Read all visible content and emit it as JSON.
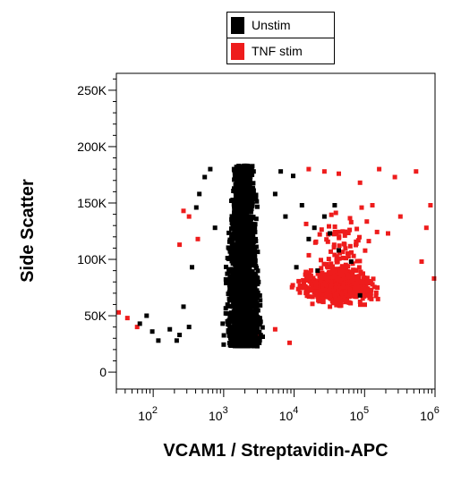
{
  "legend": [
    {
      "label": "Unstim",
      "color": "#000000"
    },
    {
      "label": "TNF stim",
      "color": "#ee1c1c"
    }
  ],
  "chart_data": {
    "type": "scatter",
    "title": "",
    "xlabel": "VCAM1 / Streptavidin-APC",
    "ylabel": "Side Scatter",
    "xscale": "log",
    "xlim": [
      30,
      1000000
    ],
    "ylim": [
      -15000,
      265000
    ],
    "x_ticks": [
      {
        "value": 100,
        "base": "10",
        "exp": "2"
      },
      {
        "value": 1000,
        "base": "10",
        "exp": "3"
      },
      {
        "value": 10000,
        "base": "10",
        "exp": "4"
      },
      {
        "value": 100000,
        "base": "10",
        "exp": "5"
      },
      {
        "value": 1000000,
        "base": "10",
        "exp": "6"
      }
    ],
    "y_ticks": [
      {
        "value": 0,
        "label": "0"
      },
      {
        "value": 50000,
        "label": "50K"
      },
      {
        "value": 100000,
        "label": "100K"
      },
      {
        "value": 150000,
        "label": "150K"
      },
      {
        "value": 200000,
        "label": "200K"
      },
      {
        "value": 250000,
        "label": "250K"
      }
    ],
    "grid": false,
    "legend_position": "top-center",
    "series": [
      {
        "name": "Unstim",
        "color": "#000000",
        "core": {
          "x_log_center": 3.25,
          "x_log_spread": 0.22,
          "y_range": [
            25000,
            185000
          ],
          "n": 2600
        },
        "points": [
          [
            60,
            45000
          ],
          [
            75,
            52000
          ],
          [
            90,
            38000
          ],
          [
            110,
            30000
          ],
          [
            160,
            40000
          ],
          [
            200,
            30000
          ],
          [
            220,
            35000
          ],
          [
            250,
            60000
          ],
          [
            300,
            42000
          ],
          [
            330,
            95000
          ],
          [
            380,
            148000
          ],
          [
            420,
            160000
          ],
          [
            500,
            175000
          ],
          [
            600,
            182000
          ],
          [
            700,
            130000
          ],
          [
            900,
            45000
          ],
          [
            1500,
            170000
          ],
          [
            6000,
            180000
          ],
          [
            9000,
            176000
          ],
          [
            12000,
            150000
          ],
          [
            15000,
            120000
          ],
          [
            20000,
            92000
          ],
          [
            25000,
            140000
          ],
          [
            30000,
            125000
          ],
          [
            40000,
            110000
          ],
          [
            60000,
            100000
          ],
          [
            80000,
            70000
          ],
          [
            5000,
            160000
          ],
          [
            7000,
            140000
          ],
          [
            10000,
            95000
          ],
          [
            18000,
            130000
          ],
          [
            35000,
            150000
          ]
        ]
      },
      {
        "name": "TNF stim",
        "color": "#ee1c1c",
        "core": {
          "x_log_center": 4.6,
          "x_log_spread": 0.45,
          "y_range": [
            40000,
            110000
          ],
          "n": 900
        },
        "points": [
          [
            30,
            55000
          ],
          [
            40,
            50000
          ],
          [
            55,
            42000
          ],
          [
            220,
            115000
          ],
          [
            250,
            145000
          ],
          [
            300,
            140000
          ],
          [
            400,
            120000
          ],
          [
            3000,
            35000
          ],
          [
            5000,
            40000
          ],
          [
            8000,
            28000
          ],
          [
            15000,
            182000
          ],
          [
            25000,
            180000
          ],
          [
            40000,
            178000
          ],
          [
            80000,
            170000
          ],
          [
            150000,
            182000
          ],
          [
            250000,
            175000
          ],
          [
            500000,
            180000
          ],
          [
            700000,
            130000
          ],
          [
            800000,
            150000
          ],
          [
            600000,
            100000
          ],
          [
            900000,
            85000
          ],
          [
            300000,
            140000
          ],
          [
            120000,
            150000
          ],
          [
            60000,
            135000
          ],
          [
            200000,
            125000
          ]
        ]
      }
    ]
  }
}
